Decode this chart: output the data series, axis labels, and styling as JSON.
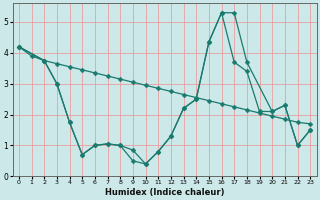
{
  "xlabel": "Humidex (Indice chaleur)",
  "background_color": "#cde8e8",
  "line_color": "#1a7a6e",
  "grid_color": "#e8a0a0",
  "xlim": [
    -0.5,
    23.5
  ],
  "ylim": [
    0,
    5.6
  ],
  "yticks": [
    0,
    1,
    2,
    3,
    4,
    5
  ],
  "xticks": [
    0,
    1,
    2,
    3,
    4,
    5,
    6,
    7,
    8,
    9,
    10,
    11,
    12,
    13,
    14,
    15,
    16,
    17,
    18,
    19,
    20,
    21,
    22,
    23
  ],
  "line1_x": [
    0,
    1,
    2,
    3,
    4,
    5,
    6,
    7,
    8,
    9,
    10,
    11,
    12,
    13,
    14,
    15,
    16,
    17,
    18,
    19,
    20,
    21,
    22,
    23
  ],
  "line1_y": [
    4.2,
    3.9,
    3.75,
    3.65,
    3.55,
    3.45,
    3.35,
    3.25,
    3.15,
    3.05,
    2.95,
    2.85,
    2.75,
    2.65,
    2.55,
    2.45,
    2.35,
    2.25,
    2.15,
    2.05,
    1.95,
    1.85,
    1.75,
    1.7
  ],
  "line2_x": [
    0,
    2,
    3,
    4,
    5,
    6,
    7,
    8,
    9,
    10,
    11,
    12,
    13,
    14,
    15,
    16,
    17,
    18,
    20,
    21,
    22,
    23
  ],
  "line2_y": [
    4.2,
    3.75,
    3.0,
    1.75,
    0.7,
    1.0,
    1.05,
    1.0,
    0.85,
    0.4,
    0.8,
    1.3,
    2.2,
    2.5,
    4.35,
    5.3,
    5.3,
    3.7,
    2.1,
    2.3,
    1.0,
    1.5
  ],
  "line3_x": [
    0,
    2,
    3,
    4,
    5,
    6,
    7,
    8,
    9,
    10,
    11,
    12,
    13,
    14,
    15,
    16,
    17,
    18,
    19,
    20,
    21,
    22,
    23
  ],
  "line3_y": [
    4.2,
    3.75,
    3.0,
    1.75,
    0.7,
    1.0,
    1.05,
    1.0,
    0.5,
    0.4,
    0.8,
    1.3,
    2.2,
    2.5,
    4.35,
    5.3,
    3.7,
    3.4,
    2.1,
    2.1,
    2.3,
    1.0,
    1.5
  ]
}
